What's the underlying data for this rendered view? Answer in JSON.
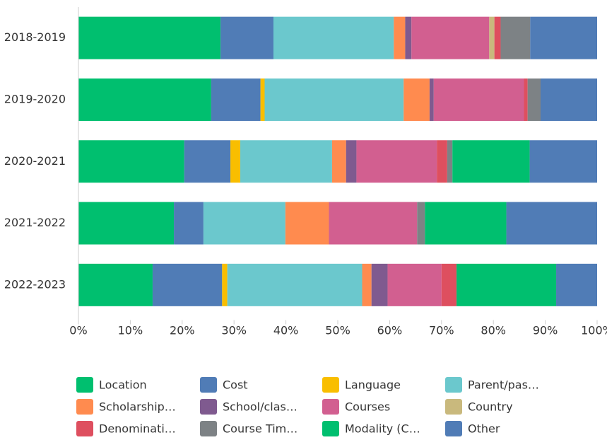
{
  "chart_data": {
    "type": "stacked_bar",
    "orientation": "horizontal",
    "categories": [
      "2018-2019",
      "2019-2020",
      "2020-2021",
      "2021-2022",
      "2022-2023"
    ],
    "xlim": [
      0,
      100
    ],
    "xticks": [
      {
        "value": 0,
        "label": "0%"
      },
      {
        "value": 10,
        "label": "10%"
      },
      {
        "value": 20,
        "label": "20%"
      },
      {
        "value": 30,
        "label": "30%"
      },
      {
        "value": 40,
        "label": "40%"
      },
      {
        "value": 50,
        "label": "50%"
      },
      {
        "value": 60,
        "label": "60%"
      },
      {
        "value": 70,
        "label": "70%"
      },
      {
        "value": 80,
        "label": "80%"
      },
      {
        "value": 90,
        "label": "90%"
      },
      {
        "value": 100,
        "label": "100%"
      }
    ],
    "series": [
      {
        "name": "Location",
        "color": "#00bf6f",
        "values": [
          27.4,
          25.6,
          20.4,
          18.4,
          14.3
        ]
      },
      {
        "name": "Cost",
        "color": "#507cb6",
        "values": [
          10.2,
          9.5,
          8.9,
          5.7,
          13.4
        ]
      },
      {
        "name": "Language",
        "color": "#f9be00",
        "values": [
          0,
          0.8,
          1.9,
          0,
          1.0
        ]
      },
      {
        "name": "Parent/pas…",
        "color": "#6bc8cd",
        "values": [
          23.2,
          26.8,
          17.7,
          15.8,
          26.0
        ]
      },
      {
        "name": "Scholarship…",
        "color": "#ff8b4f",
        "values": [
          2.2,
          5.0,
          2.7,
          8.4,
          1.8
        ]
      },
      {
        "name": "School/clas…",
        "color": "#7f5a8f",
        "values": [
          1.2,
          0.8,
          2.0,
          0,
          3.1
        ]
      },
      {
        "name": "Courses",
        "color": "#d25f90",
        "values": [
          15.0,
          17.4,
          15.5,
          17.0,
          10.4
        ]
      },
      {
        "name": "Country",
        "color": "#c9b97d",
        "values": [
          1.0,
          0,
          0,
          0,
          0
        ]
      },
      {
        "name": "Denominati…",
        "color": "#de4f5f",
        "values": [
          1.2,
          0.7,
          2.0,
          0,
          2.9
        ]
      },
      {
        "name": "Course Tim…",
        "color": "#7d8285",
        "values": [
          5.7,
          2.5,
          1.0,
          1.5,
          0
        ]
      },
      {
        "name": "Modality (C…",
        "color": "#00bf6f",
        "values": [
          0,
          0,
          14.9,
          15.7,
          19.2
        ]
      },
      {
        "name": "Other",
        "color": "#507cb6",
        "values": [
          12.9,
          10.9,
          13.0,
          17.5,
          7.9
        ]
      }
    ]
  }
}
